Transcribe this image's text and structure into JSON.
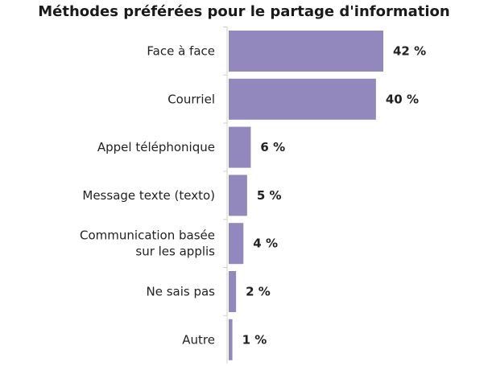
{
  "chart_data": {
    "type": "bar",
    "orientation": "horizontal",
    "title": "Méthodes préférées pour le partage d'information",
    "categories": [
      [
        "Face à face"
      ],
      [
        "Courriel"
      ],
      [
        "Appel téléphonique"
      ],
      [
        "Message texte (texto)"
      ],
      [
        "Communication basée",
        "sur les applis"
      ],
      [
        "Ne sais pas"
      ],
      [
        "Autre"
      ]
    ],
    "values": [
      42,
      40,
      6,
      5,
      4,
      2,
      1
    ],
    "value_labels": [
      "42 %",
      "40 %",
      "6 %",
      "5 %",
      "4 %",
      "2 %",
      "1 %"
    ],
    "xlim": [
      0,
      42
    ],
    "grid": false,
    "color": "#9288be"
  }
}
